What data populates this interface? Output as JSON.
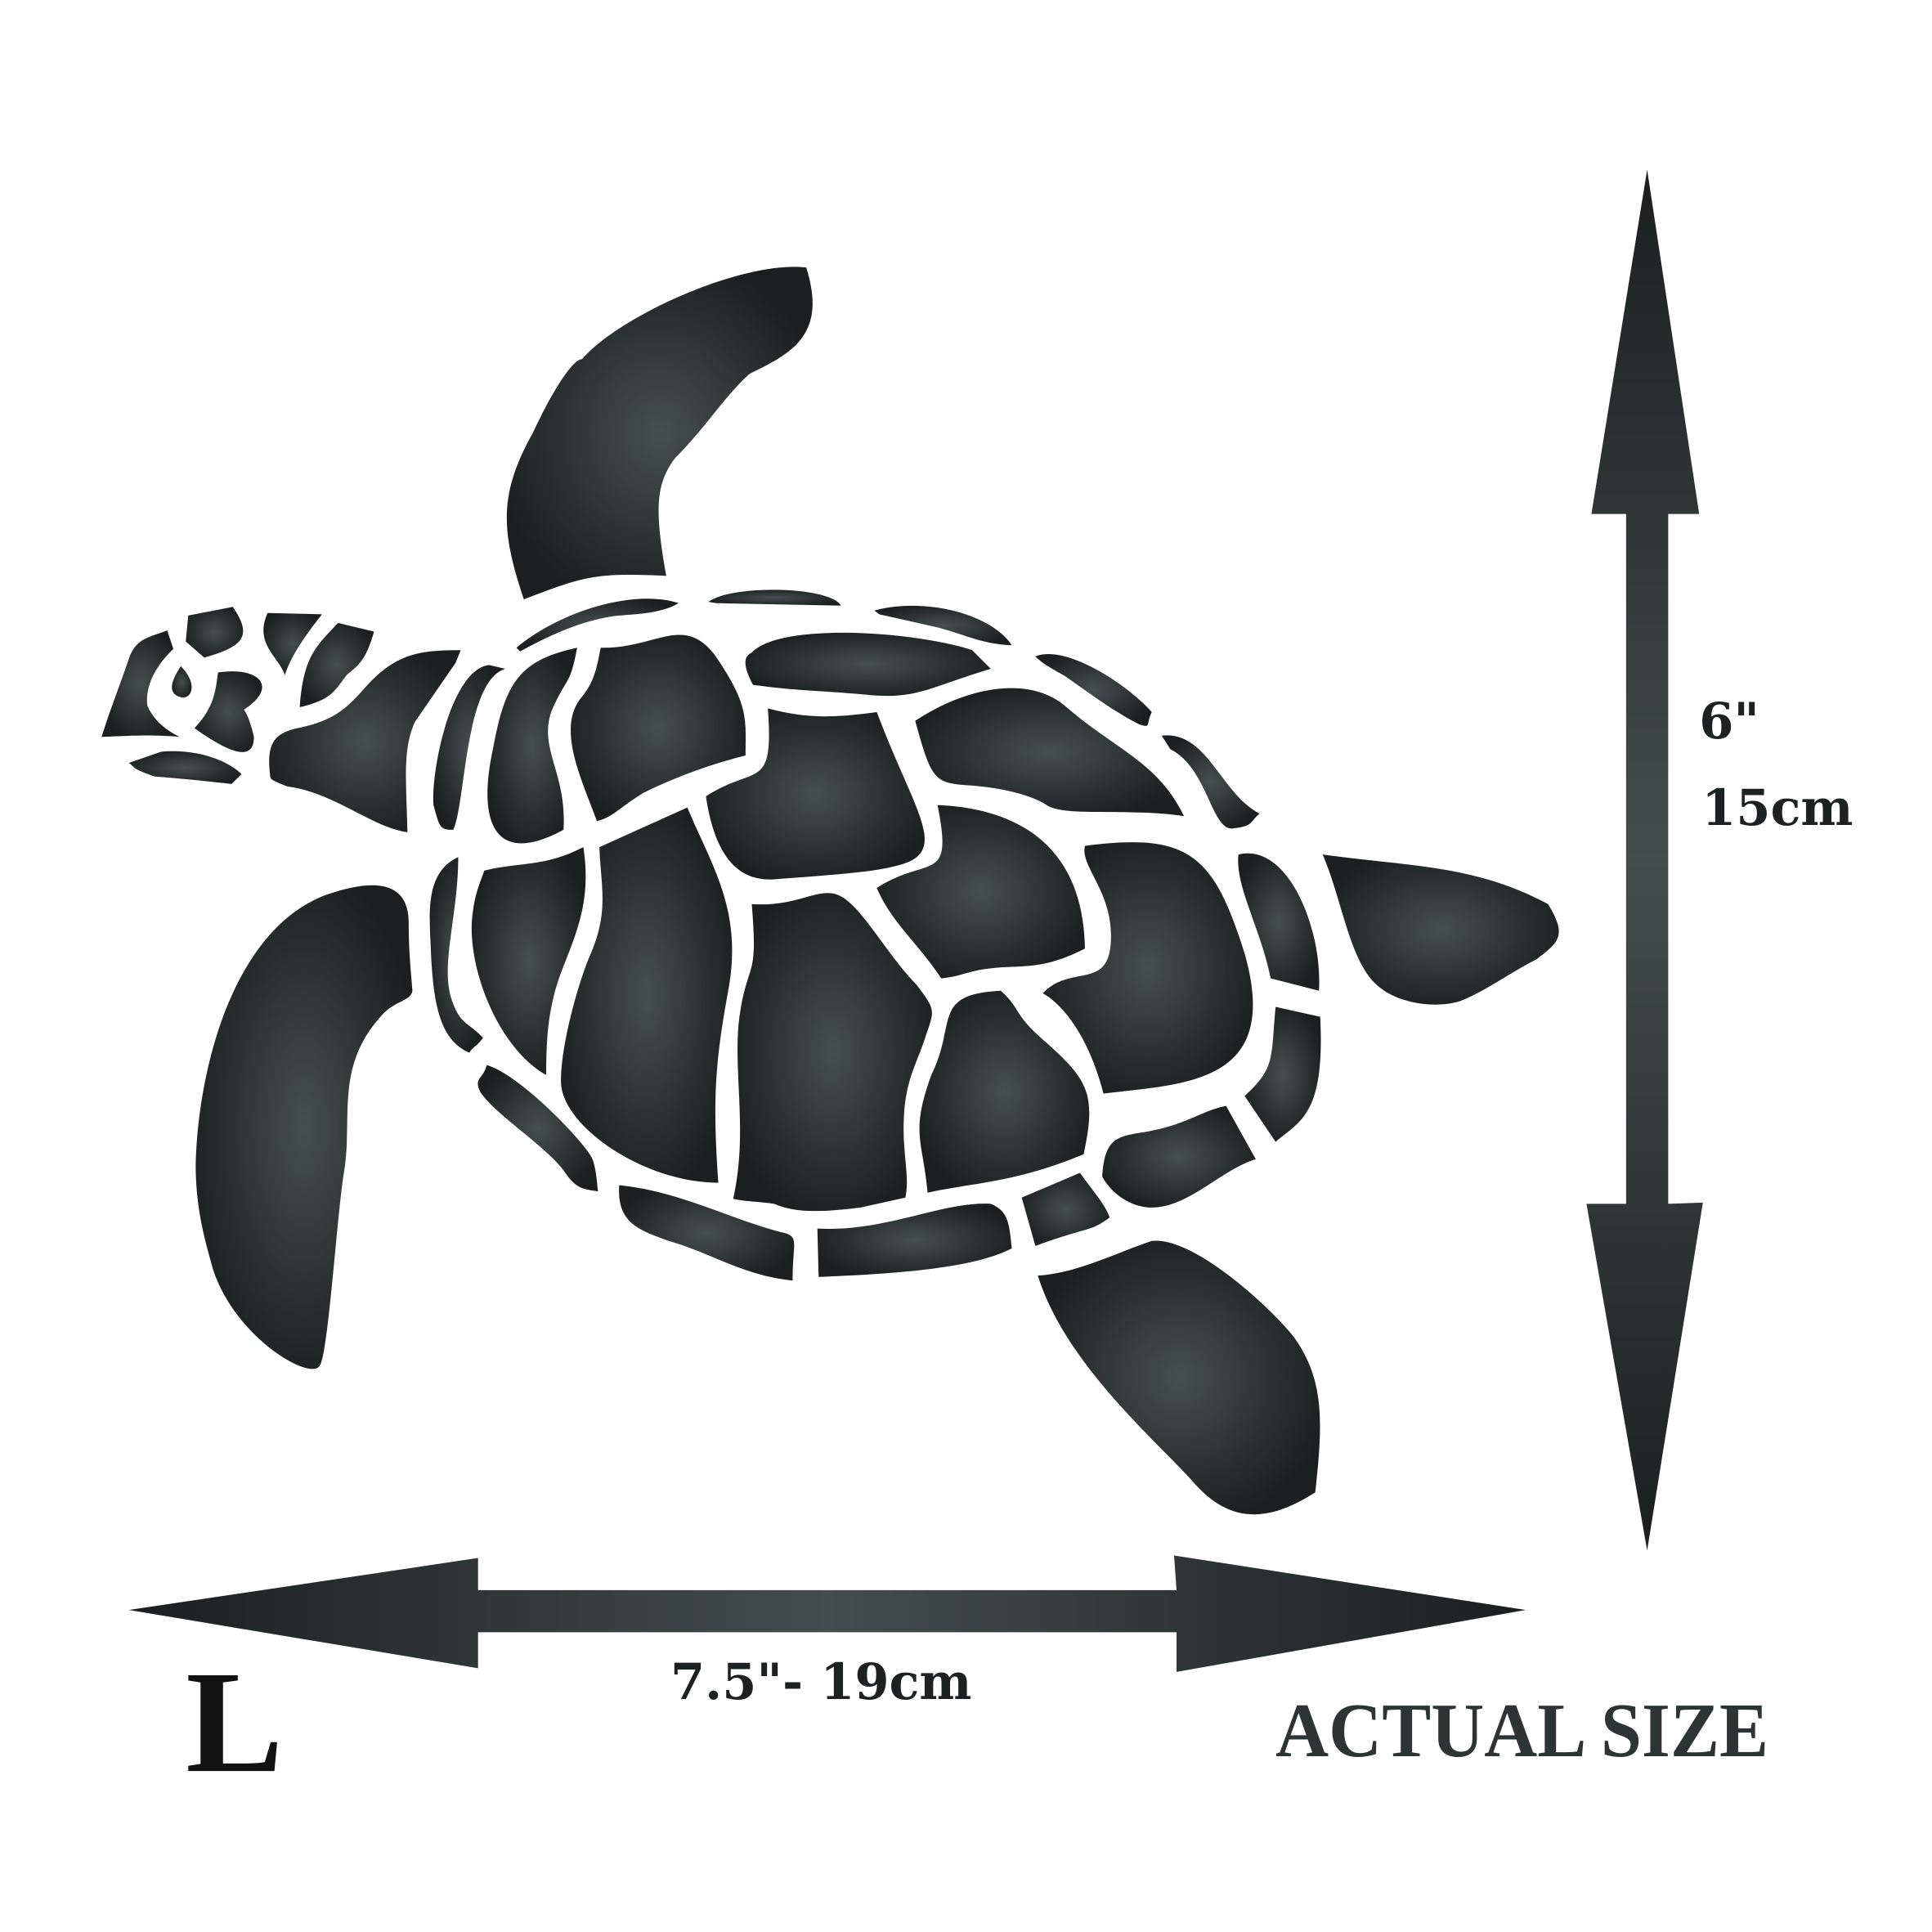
{
  "height_label": {
    "inches": "6\"",
    "cm": "15cm"
  },
  "width_label": "7.5\"- 19cm",
  "size_letter": "L",
  "note": "ACTUAL SIZE",
  "colors": {
    "ink_center": "#434d4d",
    "ink_edge": "#1a1e1f",
    "background": "#ffffff"
  },
  "icons": [
    "sea-turtle-stencil",
    "vertical-double-arrow",
    "horizontal-double-arrow"
  ]
}
